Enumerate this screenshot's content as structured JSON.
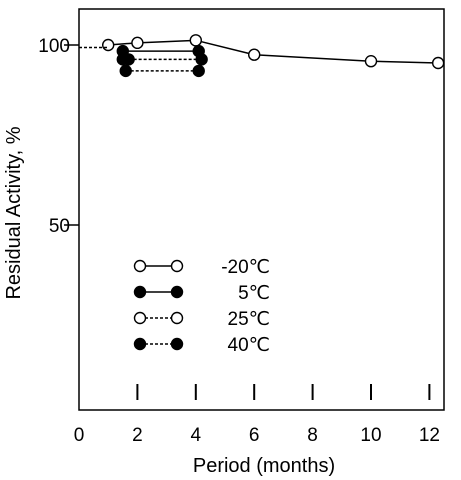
{
  "chart_data": {
    "type": "line",
    "xlabel": "Period (months)",
    "ylabel": "Residual Activity, %",
    "xlim": [
      0,
      13
    ],
    "ylim": [
      0,
      110
    ],
    "x_ticks": [
      0,
      2,
      4,
      6,
      8,
      10,
      12
    ],
    "y_ticks": [
      50,
      100
    ],
    "grid": false,
    "legend_position": "lower-left",
    "series": [
      {
        "name": "-20℃",
        "marker": "open",
        "line": "solid",
        "points": [
          [
            1,
            100
          ],
          [
            2,
            100.6
          ],
          [
            4,
            101.3
          ],
          [
            6,
            97.3
          ],
          [
            10,
            95.5
          ],
          [
            12.3,
            95.0
          ]
        ]
      },
      {
        "name": "5℃",
        "marker": "filled",
        "line": "solid",
        "points": [
          [
            1.5,
            98.3
          ],
          [
            4.1,
            98.3
          ]
        ]
      },
      {
        "name": "25℃",
        "marker": "open",
        "line": "dashed",
        "points": [
          [
            0.0,
            99.3
          ],
          [
            1.0,
            99.3
          ]
        ]
      },
      {
        "name": "40℃",
        "marker": "filled",
        "line": "dashed",
        "points": [
          [
            1.5,
            96.0
          ],
          [
            1.7,
            96.0
          ],
          [
            4.2,
            96.0
          ],
          [
            1.6,
            92.8
          ],
          [
            4.1,
            92.8
          ]
        ]
      }
    ]
  }
}
